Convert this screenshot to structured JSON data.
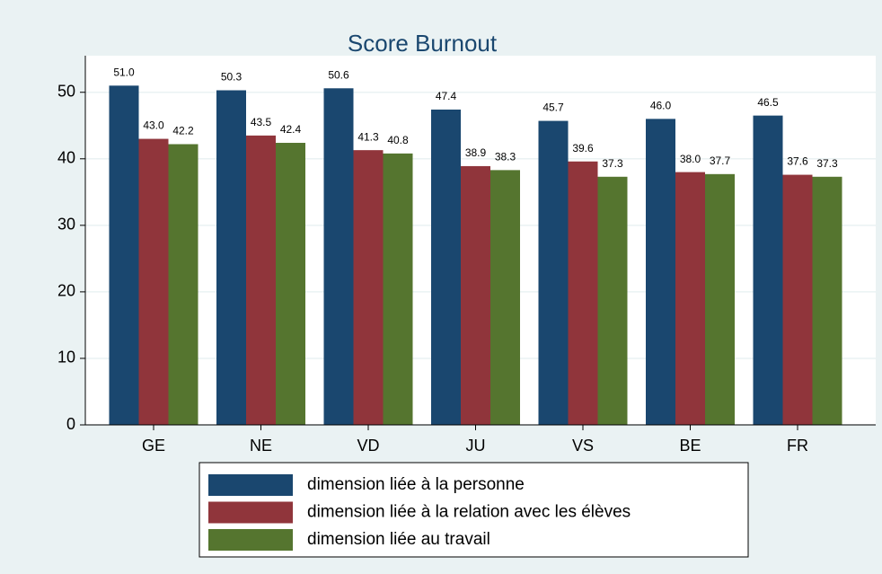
{
  "chart_data": {
    "type": "bar",
    "title": "Score Burnout",
    "categories": [
      "GE",
      "NE",
      "VD",
      "JU",
      "VS",
      "BE",
      "FR"
    ],
    "series": [
      {
        "name": "dimension liée à la personne",
        "color": "#1a476f",
        "values": [
          51.0,
          50.3,
          50.6,
          47.4,
          45.7,
          46.0,
          46.5
        ],
        "value_labels": [
          "51.0",
          "50.3",
          "50.6",
          "47.4",
          "45.7",
          "46.0",
          "46.5"
        ]
      },
      {
        "name": "dimension liée à la relation avec les élèves",
        "color": "#90353b",
        "values": [
          43.0,
          43.5,
          41.3,
          38.9,
          39.6,
          38.0,
          37.6
        ],
        "value_labels": [
          "43.0",
          "43.5",
          "41.3",
          "38.9",
          "39.6",
          "38.0",
          "37.6"
        ]
      },
      {
        "name": "dimension liée au travail",
        "color": "#55752f",
        "values": [
          42.2,
          42.4,
          40.8,
          38.3,
          37.3,
          37.7,
          37.3
        ],
        "value_labels": [
          "42.2",
          "42.4",
          "40.8",
          "38.3",
          "37.3",
          "37.7",
          "37.3"
        ]
      }
    ],
    "ylim": [
      0,
      55.5
    ],
    "yticks": [
      0,
      10,
      20,
      30,
      40,
      50
    ],
    "grid": true
  }
}
